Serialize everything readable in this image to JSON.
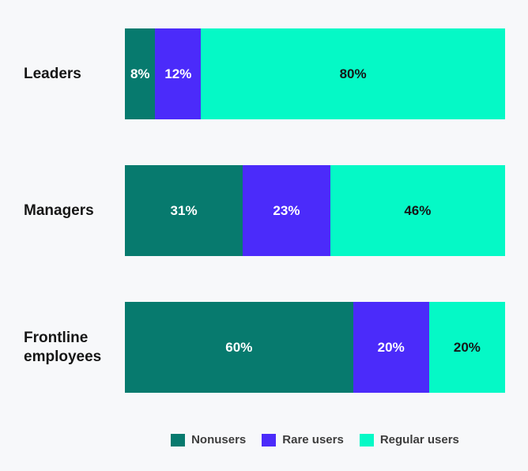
{
  "chart_data": {
    "type": "bar",
    "orientation": "horizontal",
    "stacked": true,
    "title": "",
    "xlabel": "",
    "ylabel": "",
    "value_format": "percent",
    "axis_visible": false,
    "grid": false,
    "xlim": [
      0,
      100
    ],
    "categories": [
      "Leaders",
      "Managers",
      "Frontline employees"
    ],
    "series": [
      {
        "name": "Nonusers",
        "color": "#077a6e",
        "text_color": "#ffffff",
        "values": [
          8,
          31,
          60
        ]
      },
      {
        "name": "Rare users",
        "color": "#4b2bfa",
        "text_color": "#ffffff",
        "values": [
          12,
          23,
          20
        ]
      },
      {
        "name": "Regular users",
        "color": "#05f9c6",
        "text_color": "#161616",
        "values": [
          80,
          46,
          20
        ]
      }
    ],
    "data_labels": [
      [
        "8%",
        "12%",
        "80%"
      ],
      [
        "31%",
        "23%",
        "46%"
      ],
      [
        "60%",
        "20%",
        "20%"
      ]
    ],
    "legend_position": "bottom-center"
  },
  "colors": {
    "background": "#f7f8fa",
    "category_label": "#161616",
    "legend_text": "#3d3d3d"
  }
}
